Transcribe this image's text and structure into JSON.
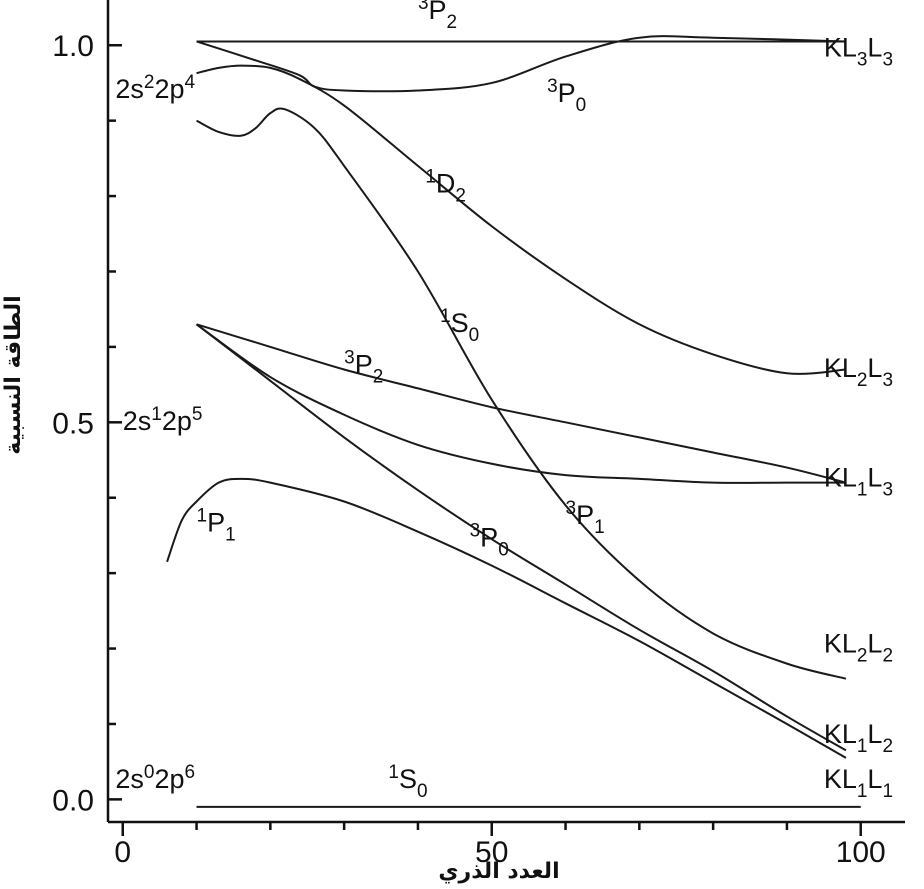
{
  "chart_data": {
    "type": "line",
    "title": "",
    "xlabel": "العدد الذري",
    "ylabel": "الطاقة النسبية",
    "xlim": [
      -2,
      106
    ],
    "ylim": [
      -0.03,
      1.06
    ],
    "x_ticks": [
      0,
      50,
      100
    ],
    "x_tick_labels": [
      "0",
      "50",
      "100"
    ],
    "x_minor_ticks": [
      10,
      20,
      30,
      40,
      60,
      70,
      80,
      90
    ],
    "y_ticks": [
      0.0,
      0.5,
      1.0
    ],
    "y_tick_labels": [
      "0.0",
      "0.5",
      "1.0"
    ],
    "y_minor_ticks": [
      0.1,
      0.2,
      0.3,
      0.4,
      0.6,
      0.7,
      0.8,
      0.9
    ],
    "grid": false,
    "legend": "none",
    "series": [
      {
        "x": [
          10,
          50,
          98
        ],
        "y": [
          1.005,
          1.005,
          1.005
        ]
      },
      {
        "x": [
          10,
          18,
          24,
          26,
          30,
          40,
          50,
          60,
          70,
          80,
          98
        ],
        "y": [
          1.005,
          0.98,
          0.96,
          0.945,
          0.94,
          0.94,
          0.95,
          0.985,
          1.01,
          1.01,
          1.005
        ]
      },
      {
        "x": [
          10,
          13,
          16,
          20,
          24,
          30,
          40,
          50,
          60,
          70,
          80,
          90,
          98
        ],
        "y": [
          0.963,
          0.97,
          0.973,
          0.97,
          0.955,
          0.92,
          0.84,
          0.76,
          0.69,
          0.63,
          0.59,
          0.565,
          0.57
        ]
      },
      {
        "x": [
          10,
          13,
          16,
          18,
          20,
          22,
          26,
          30,
          40,
          50,
          60,
          70,
          80,
          90,
          98
        ],
        "y": [
          0.9,
          0.885,
          0.88,
          0.89,
          0.91,
          0.915,
          0.89,
          0.84,
          0.7,
          0.53,
          0.39,
          0.29,
          0.22,
          0.18,
          0.16
        ]
      },
      {
        "x": [
          10,
          20,
          30,
          40,
          50,
          60,
          70,
          80,
          90,
          98
        ],
        "y": [
          0.63,
          0.6,
          0.57,
          0.545,
          0.52,
          0.5,
          0.48,
          0.46,
          0.44,
          0.42
        ]
      },
      {
        "x": [
          10,
          20,
          30,
          40,
          50,
          60,
          70,
          80,
          90,
          98
        ],
        "y": [
          0.63,
          0.56,
          0.51,
          0.47,
          0.445,
          0.43,
          0.425,
          0.42,
          0.42,
          0.42
        ]
      },
      {
        "x": [
          10,
          20,
          30,
          40,
          50,
          60,
          70,
          80,
          90,
          98
        ],
        "y": [
          0.63,
          0.555,
          0.48,
          0.41,
          0.345,
          0.285,
          0.225,
          0.17,
          0.11,
          0.065
        ]
      },
      {
        "x": [
          6,
          8,
          10,
          13,
          16,
          20,
          30,
          40,
          50,
          60,
          70,
          80,
          90,
          98
        ],
        "y": [
          0.315,
          0.37,
          0.395,
          0.42,
          0.425,
          0.42,
          0.395,
          0.355,
          0.31,
          0.26,
          0.21,
          0.155,
          0.1,
          0.055
        ]
      },
      {
        "x": [
          10,
          100
        ],
        "y": [
          -0.01,
          -0.01
        ]
      }
    ],
    "annotations": [
      {
        "sup": "3",
        "base": "P",
        "sub": "2",
        "x": 40,
        "y": 1.035
      },
      {
        "sup": "3",
        "base": "P",
        "sub": "0",
        "x": 57.5,
        "y": 0.925
      },
      {
        "sup": "1",
        "base": "D",
        "sub": "2",
        "x": 41,
        "y": 0.805
      },
      {
        "sup": "1",
        "base": "S",
        "sub": "0",
        "x": 43,
        "y": 0.62
      },
      {
        "sup": "3",
        "base": "P",
        "sub": "2",
        "x": 30,
        "y": 0.565
      },
      {
        "sup": "1",
        "base": "P",
        "sub": "1",
        "x": 10,
        "y": 0.355
      },
      {
        "sup": "3",
        "base": "P",
        "sub": "0",
        "x": 47,
        "y": 0.335
      },
      {
        "sup": "3",
        "base": "P",
        "sub": "1",
        "x": 60,
        "y": 0.365
      },
      {
        "sup": "1",
        "base": "S",
        "sub": "0",
        "x": 36,
        "y": 0.015
      },
      {
        "parts": [
          "2s",
          "2",
          "2p",
          "4"
        ],
        "x": -1,
        "y": 0.93
      },
      {
        "parts": [
          "2s",
          "1",
          "2p",
          "5"
        ],
        "x": 0,
        "y": 0.49
      },
      {
        "parts": [
          "2s",
          "0",
          "2p",
          "6"
        ],
        "x": -1,
        "y": 0.015
      },
      {
        "parts": [
          "KL",
          "3",
          "L",
          "3"
        ],
        "x": 95,
        "y": 0.985
      },
      {
        "parts": [
          "KL",
          "2",
          "L",
          "3"
        ],
        "x": 95,
        "y": 0.56
      },
      {
        "parts": [
          "KL",
          "1",
          "L",
          "3"
        ],
        "x": 95,
        "y": 0.415
      },
      {
        "parts": [
          "KL",
          "2",
          "L",
          "2"
        ],
        "x": 95,
        "y": 0.195
      },
      {
        "parts": [
          "KL",
          "1",
          "L",
          "2"
        ],
        "x": 95,
        "y": 0.075
      },
      {
        "parts": [
          "KL",
          "1",
          "L",
          "1"
        ],
        "x": 95,
        "y": 0.015
      }
    ]
  }
}
